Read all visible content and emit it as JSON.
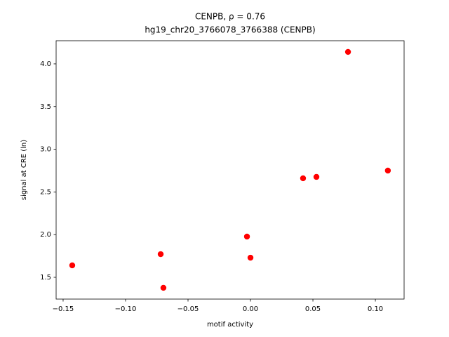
{
  "chart_data": {
    "type": "scatter",
    "title": "CENPB, ρ = 0.76",
    "subtitle": "hg19_chr20_3766078_3766388 (CENPB)",
    "x_label": "motif activity",
    "y_label": "signal at CRE (ln)",
    "color": "#ff0000",
    "x": [
      -0.1427,
      -0.0719,
      -0.0697,
      -0.0028,
      0.0,
      0.0421,
      0.0528,
      0.0781,
      0.11
    ],
    "y": [
      1.64,
      1.771,
      1.377,
      1.977,
      1.73,
      2.66,
      2.676,
      4.14,
      2.75
    ],
    "xlim": [
      -0.1556,
      0.123
    ],
    "ylim": [
      1.245,
      4.271
    ],
    "xticks": [
      {
        "value": -0.15,
        "label": "−0.15"
      },
      {
        "value": -0.1,
        "label": "−0.10"
      },
      {
        "value": -0.05,
        "label": "−0.05"
      },
      {
        "value": 0,
        "label": "0.00"
      },
      {
        "value": 0.05,
        "label": "0.05"
      },
      {
        "value": 0.1,
        "label": "0.10"
      }
    ],
    "yticks": [
      {
        "value": 1.5,
        "label": "1.5"
      },
      {
        "value": 2.0,
        "label": "2.0"
      },
      {
        "value": 2.5,
        "label": "2.5"
      },
      {
        "value": 3.0,
        "label": "3.0"
      },
      {
        "value": 3.5,
        "label": "3.5"
      },
      {
        "value": 4.0,
        "label": "4.0"
      }
    ]
  }
}
